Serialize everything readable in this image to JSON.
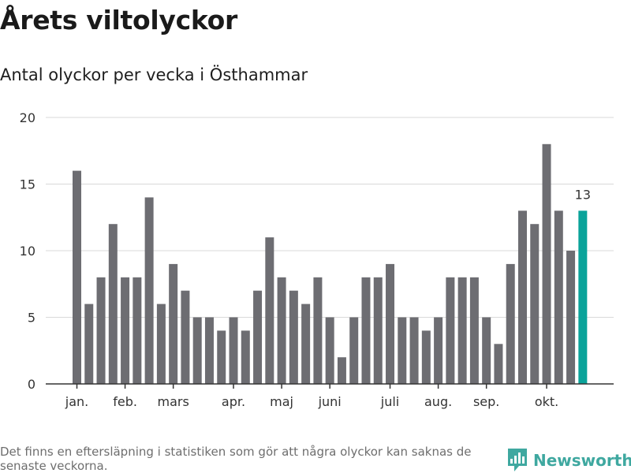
{
  "header": {
    "title": "Årets viltolyckor",
    "subtitle": "Antal olyckor per vecka i Östhammar"
  },
  "footer": {
    "note": "Det finns en eftersläpning i statistiken som gör att några olyckor kan saknas de senaste veckorna.",
    "brand": "Newsworthy"
  },
  "colors": {
    "bar": "#6d6d72",
    "highlight": "#0aa39a",
    "grid": "#d9d9d9",
    "axis": "#333333",
    "brand": "#3fa8a0"
  },
  "chart_data": {
    "type": "bar",
    "title": "Årets viltolyckor",
    "subtitle": "Antal olyckor per vecka i Östhammar",
    "xlabel": "",
    "ylabel": "",
    "ylim": [
      0,
      20
    ],
    "yticks": [
      0,
      5,
      10,
      15,
      20
    ],
    "grid": true,
    "weeks": [
      1,
      2,
      3,
      4,
      5,
      6,
      7,
      8,
      9,
      10,
      11,
      12,
      13,
      14,
      15,
      16,
      17,
      18,
      19,
      20,
      21,
      22,
      23,
      24,
      25,
      26,
      27,
      28,
      29,
      30,
      31,
      32,
      33,
      34,
      35,
      36,
      37,
      38,
      39,
      40,
      41,
      42,
      43
    ],
    "values": [
      16,
      6,
      8,
      12,
      8,
      8,
      14,
      6,
      9,
      7,
      5,
      5,
      4,
      5,
      4,
      7,
      11,
      8,
      7,
      6,
      8,
      5,
      2,
      5,
      8,
      8,
      9,
      5,
      5,
      4,
      5,
      8,
      8,
      8,
      5,
      3,
      9,
      13,
      12,
      18,
      13,
      10,
      13
    ],
    "highlight_index": 42,
    "highlight_label": "13",
    "month_labels": [
      {
        "label": "jan.",
        "week": 1
      },
      {
        "label": "feb.",
        "week": 5
      },
      {
        "label": "mars",
        "week": 9
      },
      {
        "label": "apr.",
        "week": 14
      },
      {
        "label": "maj",
        "week": 18
      },
      {
        "label": "juni",
        "week": 22
      },
      {
        "label": "juli",
        "week": 27
      },
      {
        "label": "aug.",
        "week": 31
      },
      {
        "label": "sep.",
        "week": 35
      },
      {
        "label": "okt.",
        "week": 40
      }
    ]
  }
}
